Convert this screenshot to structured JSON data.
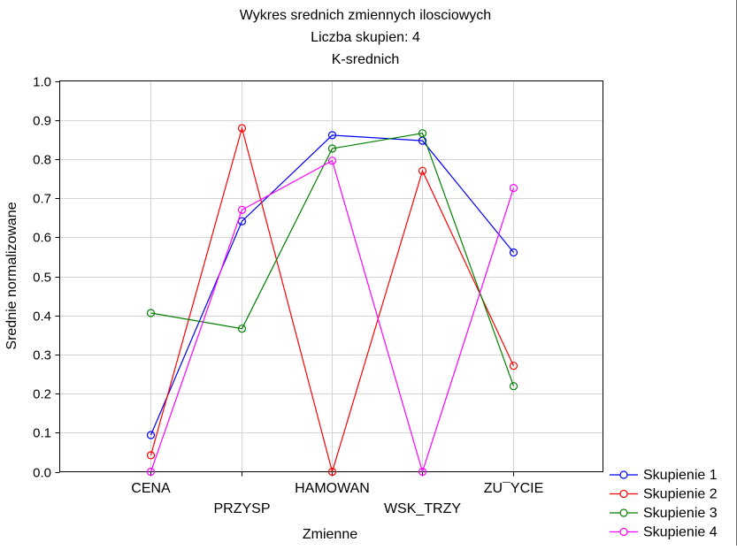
{
  "chart_data": {
    "type": "line",
    "title_lines": [
      "Wykres srednich zmiennych ilosciowych",
      "Liczba skupien: 4",
      "K-srednich"
    ],
    "xlabel": "Zmienne",
    "ylabel": "Srednie normalizowane",
    "ylim": [
      0.0,
      1.0
    ],
    "yticks": [
      "0.0",
      "0.1",
      "0.2",
      "0.3",
      "0.4",
      "0.5",
      "0.6",
      "0.7",
      "0.8",
      "0.9",
      "1.0"
    ],
    "categories": [
      "CENA",
      "PRZYSP",
      "HAMOWAN",
      "WSK_TRZY",
      "ZU¯YCIE"
    ],
    "grid": true,
    "legend_position": "bottom-right",
    "series": [
      {
        "name": "Skupienie 1",
        "color": "#0000ff",
        "values": [
          0.094,
          0.641,
          0.861,
          0.847,
          0.561
        ]
      },
      {
        "name": "Skupienie 2",
        "color": "#ff0000",
        "values": [
          0.042,
          0.879,
          0.0,
          0.77,
          0.271
        ]
      },
      {
        "name": "Skupienie 3",
        "color": "#008000",
        "values": [
          0.406,
          0.366,
          0.827,
          0.866,
          0.219
        ]
      },
      {
        "name": "Skupienie 4",
        "color": "#ff00ff",
        "values": [
          0.0,
          0.67,
          0.796,
          0.0,
          0.726
        ]
      }
    ]
  }
}
